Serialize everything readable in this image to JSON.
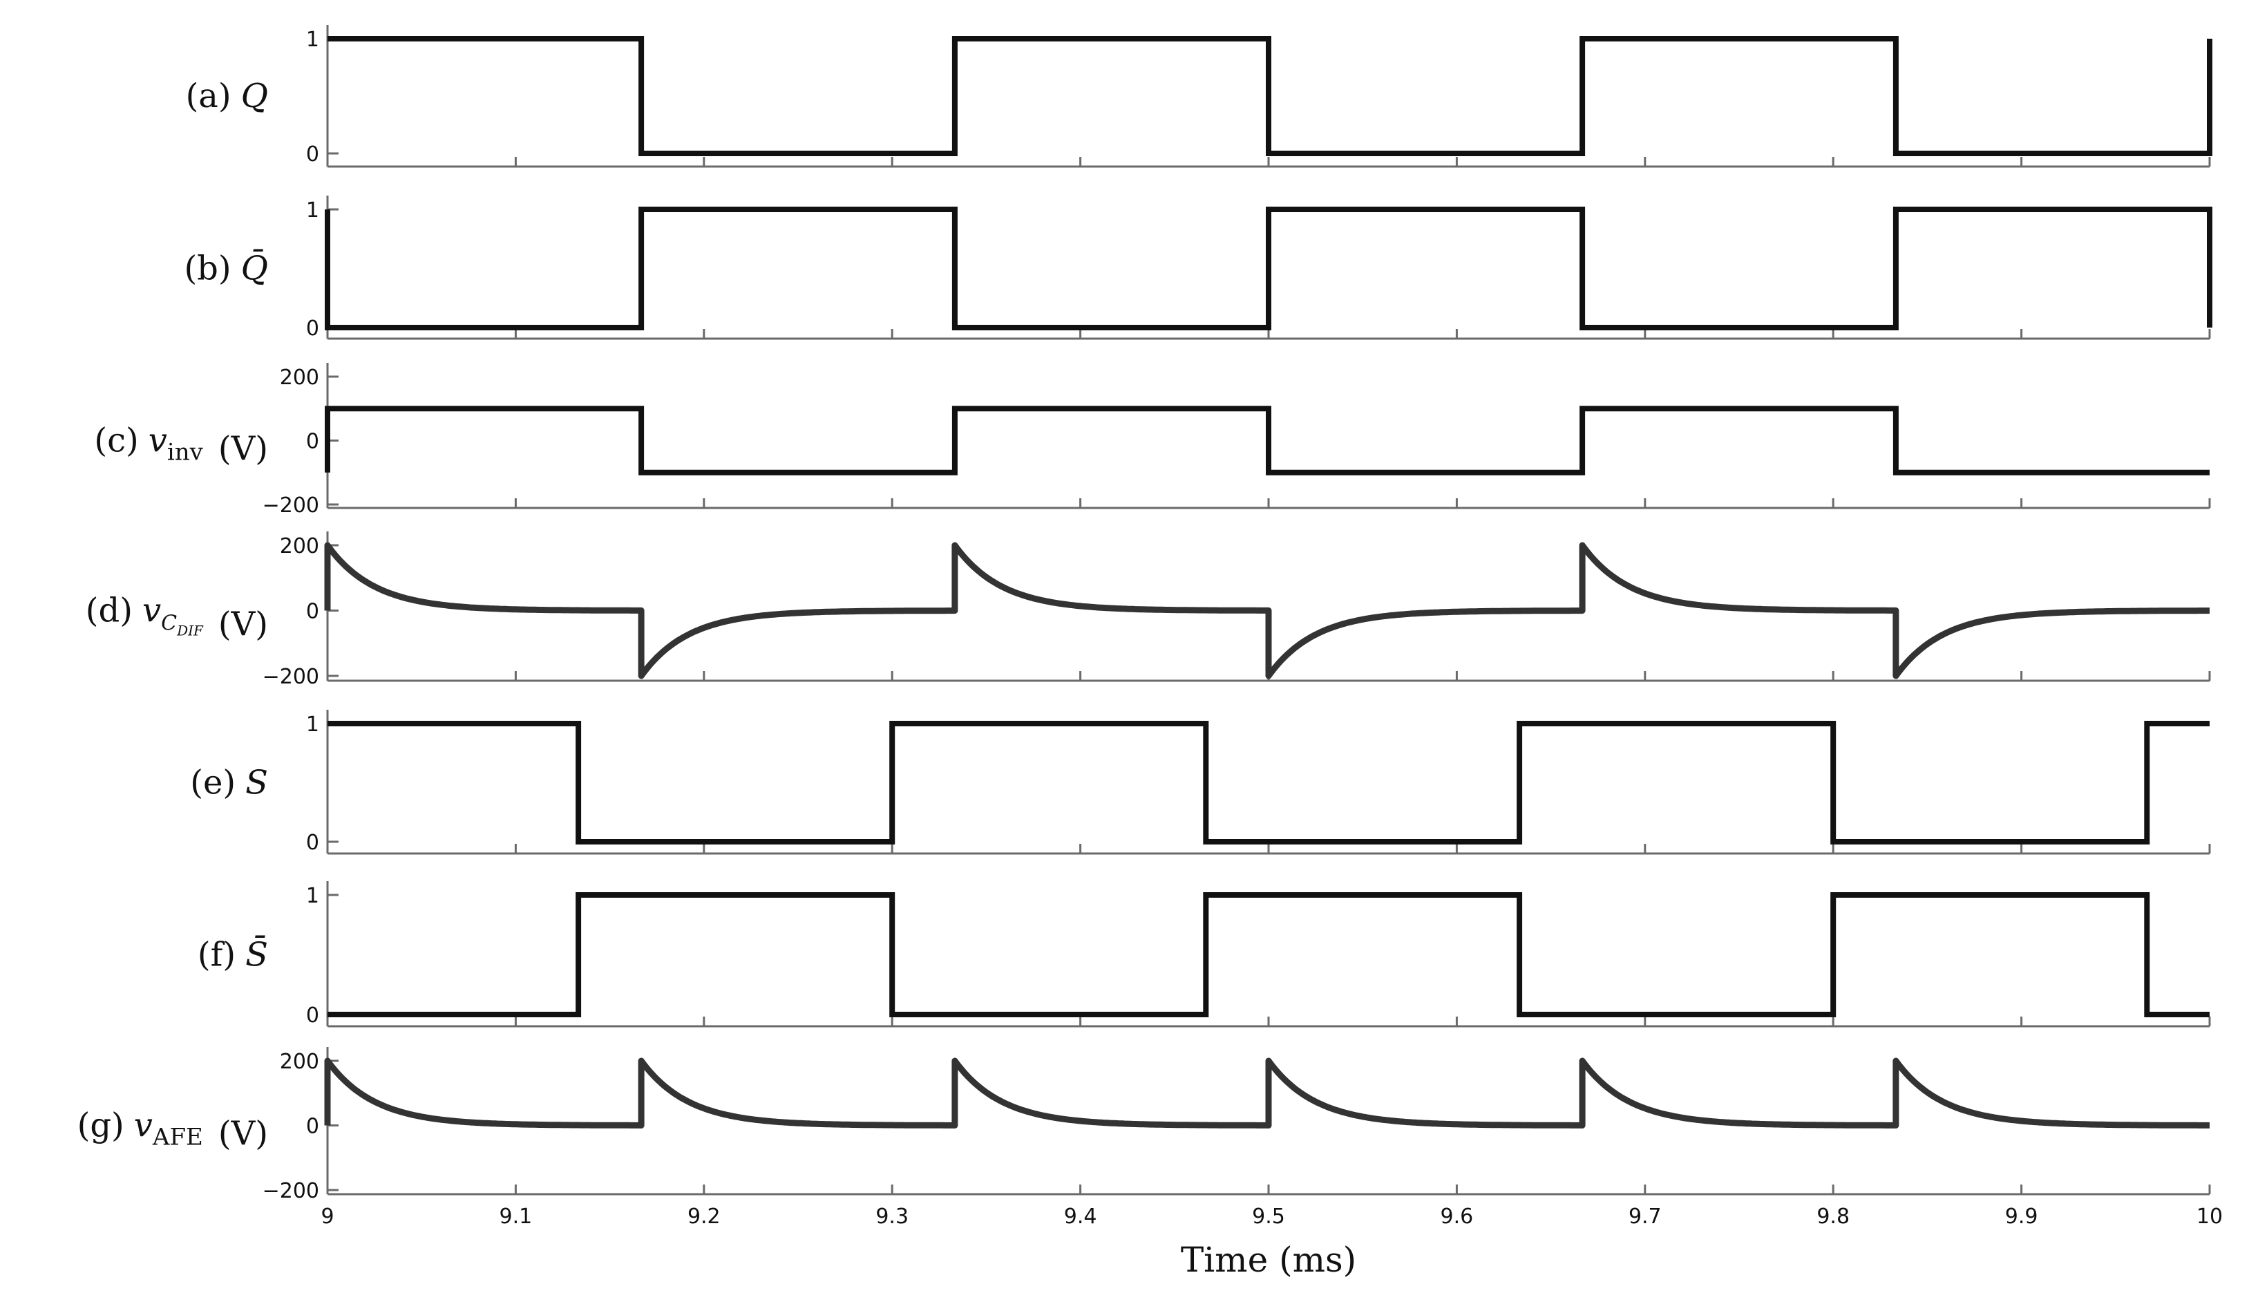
{
  "chart_data": {
    "type": "line",
    "xlabel": "Time (ms)",
    "xlim": [
      9,
      10
    ],
    "x_ticks": [
      "9",
      "9.1",
      "9.2",
      "9.3",
      "9.4",
      "9.5",
      "9.6",
      "9.7",
      "9.8",
      "9.9",
      "10"
    ],
    "grid": false,
    "panels": [
      {
        "id": "a",
        "label_prefix": "(a)",
        "symbol": "Q",
        "unit": "",
        "kind": "square",
        "ylim": [
          0,
          1
        ],
        "yticks": [
          "0",
          "1"
        ],
        "points": [
          [
            9,
            1
          ],
          [
            9.1667,
            1
          ],
          [
            9.1667,
            0
          ],
          [
            9.3333,
            0
          ],
          [
            9.3333,
            1
          ],
          [
            9.5,
            1
          ],
          [
            9.5,
            0
          ],
          [
            9.6667,
            0
          ],
          [
            9.6667,
            1
          ],
          [
            9.8333,
            1
          ],
          [
            9.8333,
            0
          ],
          [
            10,
            0
          ],
          [
            10,
            1
          ]
        ]
      },
      {
        "id": "b",
        "label_prefix": "(b)",
        "symbol": "Q̄",
        "unit": "",
        "kind": "square",
        "ylim": [
          0,
          1
        ],
        "yticks": [
          "0",
          "1"
        ],
        "points": [
          [
            9,
            0
          ],
          [
            9,
            1
          ],
          [
            9,
            0
          ],
          [
            9.1667,
            0
          ],
          [
            9.1667,
            1
          ],
          [
            9.3333,
            1
          ],
          [
            9.3333,
            0
          ],
          [
            9.5,
            0
          ],
          [
            9.5,
            1
          ],
          [
            9.6667,
            1
          ],
          [
            9.6667,
            0
          ],
          [
            9.8333,
            0
          ],
          [
            9.8333,
            1
          ],
          [
            10,
            1
          ],
          [
            10,
            0
          ]
        ]
      },
      {
        "id": "c",
        "label_prefix": "(c)",
        "symbol": "v",
        "subscript": "inv",
        "unit": "(V)",
        "kind": "square",
        "ylim": [
          -200,
          200
        ],
        "yticks": [
          "200",
          "0",
          "−200"
        ],
        "points": [
          [
            9,
            -100
          ],
          [
            9,
            100
          ],
          [
            9.1667,
            100
          ],
          [
            9.1667,
            -100
          ],
          [
            9.3333,
            -100
          ],
          [
            9.3333,
            100
          ],
          [
            9.5,
            100
          ],
          [
            9.5,
            -100
          ],
          [
            9.6667,
            -100
          ],
          [
            9.6667,
            100
          ],
          [
            9.8333,
            100
          ],
          [
            9.8333,
            -100
          ],
          [
            10,
            -100
          ]
        ]
      },
      {
        "id": "d",
        "label_prefix": "(d)",
        "symbol": "v",
        "subscript": "C",
        "sub_subscript": "DIF",
        "unit": "(V)",
        "kind": "decay",
        "ylim": [
          -200,
          200
        ],
        "yticks": [
          "200",
          "0",
          "−200"
        ],
        "amplitude": 200,
        "tau_ms": 0.025,
        "events": [
          [
            9,
            1
          ],
          [
            9.1667,
            -1
          ],
          [
            9.3333,
            1
          ],
          [
            9.5,
            -1
          ],
          [
            9.6667,
            1
          ],
          [
            9.8333,
            -1
          ]
        ]
      },
      {
        "id": "e",
        "label_prefix": "(e)",
        "symbol": "S",
        "unit": "",
        "kind": "square",
        "ylim": [
          0,
          1
        ],
        "yticks": [
          "0",
          "1"
        ],
        "points": [
          [
            9,
            1
          ],
          [
            9.1333,
            1
          ],
          [
            9.1333,
            0
          ],
          [
            9.3,
            0
          ],
          [
            9.3,
            1
          ],
          [
            9.4667,
            1
          ],
          [
            9.4667,
            0
          ],
          [
            9.6333,
            0
          ],
          [
            9.6333,
            1
          ],
          [
            9.8,
            1
          ],
          [
            9.8,
            0
          ],
          [
            9.9667,
            0
          ],
          [
            9.9667,
            1
          ],
          [
            10,
            1
          ]
        ]
      },
      {
        "id": "f",
        "label_prefix": "(f)",
        "symbol": "S̄",
        "unit": "",
        "kind": "square",
        "ylim": [
          0,
          1
        ],
        "yticks": [
          "0",
          "1"
        ],
        "points": [
          [
            9,
            0
          ],
          [
            9.1333,
            0
          ],
          [
            9.1333,
            1
          ],
          [
            9.3,
            1
          ],
          [
            9.3,
            0
          ],
          [
            9.4667,
            0
          ],
          [
            9.4667,
            1
          ],
          [
            9.6333,
            1
          ],
          [
            9.6333,
            0
          ],
          [
            9.8,
            0
          ],
          [
            9.8,
            1
          ],
          [
            9.9667,
            1
          ],
          [
            9.9667,
            0
          ],
          [
            10,
            0
          ]
        ]
      },
      {
        "id": "g",
        "label_prefix": "(g)",
        "symbol": "v",
        "subscript": "AFE",
        "unit": "(V)",
        "kind": "decay",
        "ylim": [
          -200,
          200
        ],
        "yticks": [
          "200",
          "0",
          "−200"
        ],
        "amplitude": 200,
        "tau_ms": 0.025,
        "events": [
          [
            9,
            1
          ],
          [
            9.1667,
            1
          ],
          [
            9.3333,
            1
          ],
          [
            9.5,
            1
          ],
          [
            9.6667,
            1
          ],
          [
            9.8333,
            1
          ]
        ]
      }
    ]
  }
}
